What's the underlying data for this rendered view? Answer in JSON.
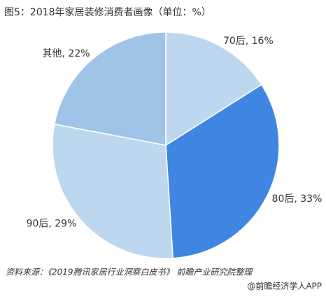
{
  "chart_data": {
    "type": "pie",
    "title": "图5：2018年家居装修消费者画像（单位：%）",
    "values": [
      16,
      33,
      29,
      22
    ],
    "value_labels": [
      "70后, 16%",
      "80后, 33%",
      "90后, 29%",
      "其他, 22%"
    ],
    "colors": [
      "#bdd7ee",
      "#3f86e2",
      "#bdd7ee",
      "#9fc4e8"
    ],
    "source": "资料来源：《2019腾讯家居行业洞察白皮书》 前瞻产业研究院整理",
    "footer": "@前瞻经济学人APP"
  }
}
